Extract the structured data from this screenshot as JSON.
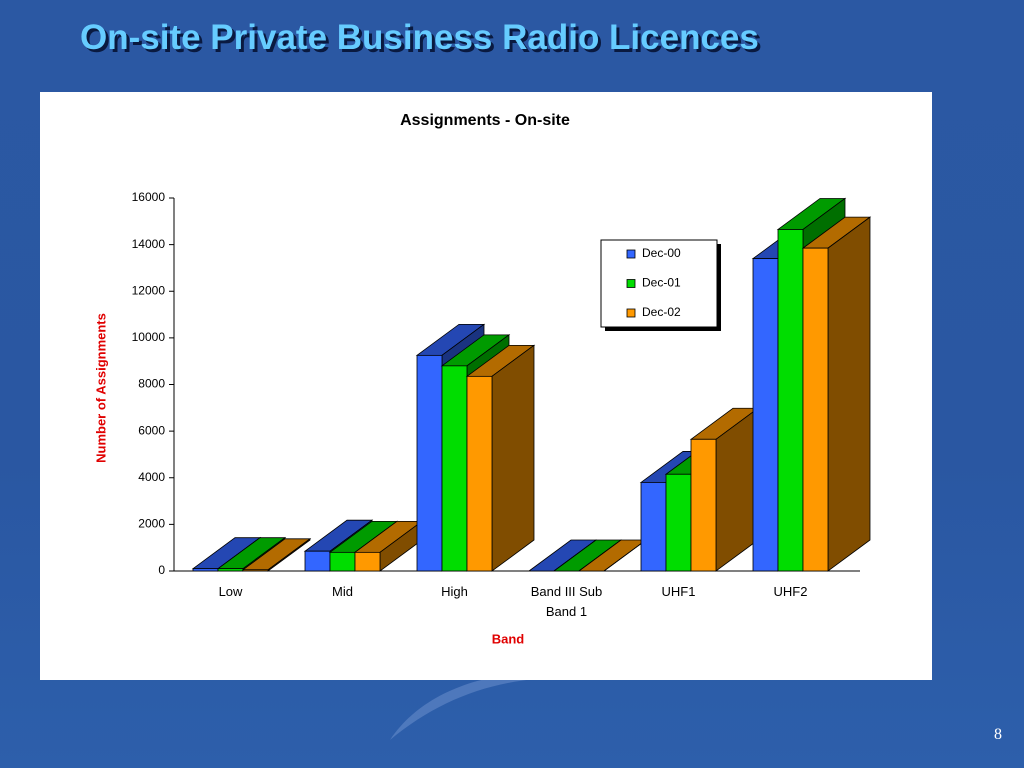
{
  "slide_title": "On-site Private Business Radio Licences",
  "page_number": 8,
  "chart_data": {
    "type": "bar3d",
    "title": "Assignments - On-site",
    "x_label": "Band",
    "y_label": "Number of Assignments",
    "categories": [
      "Low",
      "Mid",
      "High",
      "Band III Sub Band 1",
      "UHF1",
      "UHF2"
    ],
    "series": [
      {
        "name": "Dec-00",
        "color": "#3366ff",
        "values": [
          100,
          850,
          9250,
          0,
          3800,
          13400
        ]
      },
      {
        "name": "Dec-01",
        "color": "#00dd00",
        "values": [
          100,
          800,
          8800,
          0,
          4150,
          14650
        ]
      },
      {
        "name": "Dec-02",
        "color": "#ff9900",
        "values": [
          50,
          800,
          8350,
          0,
          5650,
          13850
        ]
      }
    ],
    "ylim": [
      0,
      16000
    ],
    "yticks": [
      0,
      2000,
      4000,
      6000,
      8000,
      10000,
      12000,
      14000,
      16000
    ],
    "legend": "upper-right"
  }
}
